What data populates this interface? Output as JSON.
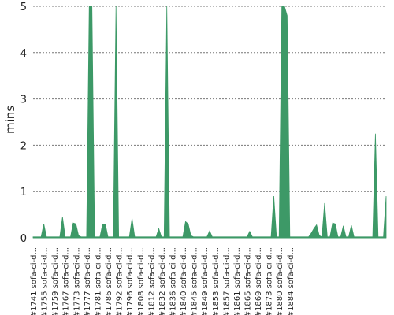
{
  "chart_data": {
    "type": "area",
    "title": "",
    "xlabel": "",
    "ylabel": "mins",
    "ylim": [
      0,
      5
    ],
    "yticks": [
      "0",
      "1",
      "2",
      "3",
      "4",
      "5"
    ],
    "grid": true,
    "legend": "none",
    "color": "#3d9967",
    "tick_labels": [
      "#1741 sofa-ci-d...",
      "#1755 sofa-ci-d...",
      "#1759 sofa-ci-d...",
      "#1767 sofa-ci-d...",
      "#1773 sofa-ci-d...",
      "#1777 sofa-ci-d...",
      "#1781 sofa-ci-d...",
      "#1786 sofa-ci-d...",
      "#1792 sofa-ci-d...",
      "#1796 sofa-ci-d...",
      "#1808 sofa-ci-d...",
      "#1812 sofa-ci-d...",
      "#1832 sofa-ci-d...",
      "#1836 sofa-ci-d...",
      "#1840 sofa-ci-d...",
      "#1845 sofa-ci-d...",
      "#1849 sofa-ci-d...",
      "#1853 sofa-ci-d...",
      "#1857 sofa-ci-d...",
      "#1861 sofa-ci-d...",
      "#1865 sofa-ci-d...",
      "#1869 sofa-ci-d...",
      "#1873 sofa-ci-d...",
      "#1880 sofa-ci-d...",
      "#1884 sofa-ci-d..."
    ],
    "tick_every": 4,
    "values": [
      0.02,
      0.02,
      0.02,
      0.02,
      0.3,
      0.02,
      0.02,
      0.02,
      0.02,
      0.02,
      0.02,
      0.45,
      0.02,
      0.02,
      0.02,
      0.32,
      0.3,
      0.05,
      0.02,
      0.02,
      0.02,
      5.0,
      5.0,
      0.02,
      0.02,
      0.02,
      0.3,
      0.3,
      0.02,
      0.02,
      0.02,
      5.0,
      0.02,
      0.02,
      0.02,
      0.02,
      0.02,
      0.42,
      0.02,
      0.02,
      0.02,
      0.02,
      0.02,
      0.02,
      0.02,
      0.02,
      0.02,
      0.2,
      0.02,
      0.02,
      5.0,
      0.02,
      0.02,
      0.02,
      0.02,
      0.02,
      0.02,
      0.35,
      0.3,
      0.05,
      0.02,
      0.02,
      0.02,
      0.02,
      0.02,
      0.02,
      0.15,
      0.02,
      0.02,
      0.02,
      0.02,
      0.02,
      0.02,
      0.02,
      0.02,
      0.02,
      0.02,
      0.02,
      0.02,
      0.02,
      0.02,
      0.14,
      0.02,
      0.02,
      0.02,
      0.02,
      0.02,
      0.02,
      0.02,
      0.02,
      0.9,
      0.02,
      0.02,
      5.0,
      5.0,
      4.8,
      0.02,
      0.02,
      0.02,
      0.02,
      0.02,
      0.02,
      0.02,
      0.02,
      0.1,
      0.2,
      0.28,
      0.05,
      0.02,
      0.75,
      0.02,
      0.02,
      0.32,
      0.3,
      0.02,
      0.02,
      0.26,
      0.02,
      0.02,
      0.27,
      0.02,
      0.02,
      0.02,
      0.02,
      0.02,
      0.02,
      0.02,
      0.02,
      2.25,
      0.02,
      0.02,
      0.02,
      0.9
    ]
  }
}
